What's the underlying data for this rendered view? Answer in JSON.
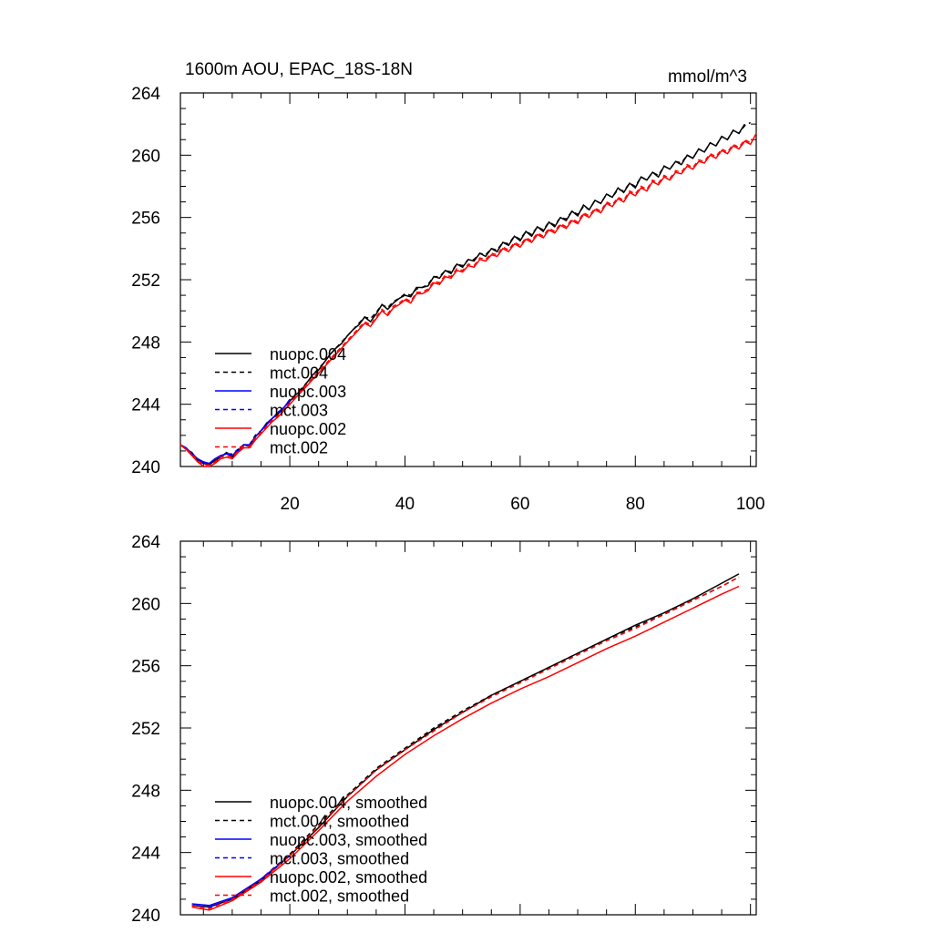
{
  "figure": {
    "title": "1600m AOU, EPAC_18S-18N",
    "units": "mmol/m^3"
  },
  "chart_data": [
    {
      "type": "line",
      "panel": "top",
      "title": "1600m AOU, EPAC_18S-18N",
      "units_label": "mmol/m^3",
      "xlim": [
        1,
        101
      ],
      "ylim": [
        240,
        264
      ],
      "xticks": [
        20,
        40,
        60,
        80,
        100
      ],
      "yticks": [
        240,
        244,
        248,
        252,
        256,
        260,
        264
      ],
      "legend_position": "lower-left",
      "series": [
        {
          "name": "nuopc.004",
          "color": "#000000",
          "dash": "solid",
          "end": 99,
          "values": [
            241.4,
            241.1,
            240.9,
            240.4,
            240.2,
            240.1,
            240.4,
            240.6,
            240.9,
            240.6,
            241.0,
            241.4,
            241.3,
            241.9,
            242.3,
            242.7,
            243.1,
            243.4,
            243.8,
            244.2,
            244.6,
            244.9,
            245.4,
            245.9,
            246.2,
            246.7,
            247.2,
            247.6,
            247.9,
            248.4,
            248.8,
            249.1,
            249.6,
            249.3,
            249.8,
            250.4,
            250.1,
            250.5,
            250.8,
            251.0,
            250.9,
            251.5,
            251.5,
            251.6,
            252.2,
            252.1,
            252.6,
            252.4,
            253.0,
            252.8,
            253.3,
            253.2,
            253.7,
            253.5,
            254.0,
            253.8,
            254.4,
            254.2,
            254.8,
            254.5,
            255.1,
            254.8,
            255.4,
            255.1,
            255.7,
            255.4,
            256.0,
            255.8,
            256.4,
            256.1,
            256.8,
            256.5,
            257.1,
            256.9,
            257.5,
            257.3,
            257.9,
            257.6,
            258.2,
            257.9,
            258.6,
            258.4,
            258.9,
            258.6,
            259.3,
            259.1,
            259.6,
            259.4,
            260.0,
            259.8,
            260.4,
            260.2,
            260.8,
            260.6,
            261.2,
            261.0,
            261.6,
            261.4,
            262.0
          ]
        },
        {
          "name": "mct.004",
          "color": "#000000",
          "dash": "dashed",
          "end": 100,
          "values": [
            241.4,
            241.2,
            240.8,
            240.5,
            240.2,
            240.2,
            240.3,
            240.7,
            240.8,
            240.8,
            241.1,
            241.4,
            241.4,
            242.0,
            242.3,
            242.8,
            243.1,
            243.5,
            243.8,
            244.3,
            244.6,
            245.0,
            245.4,
            245.9,
            246.3,
            246.7,
            247.2,
            247.6,
            248.0,
            248.4,
            248.8,
            249.2,
            249.6,
            249.5,
            249.9,
            250.4,
            250.2,
            250.6,
            250.8,
            251.1,
            251.0,
            251.4,
            251.5,
            251.7,
            252.2,
            252.2,
            252.6,
            252.5,
            253.0,
            252.9,
            253.3,
            253.3,
            253.7,
            253.6,
            254.0,
            253.9,
            254.4,
            254.3,
            254.8,
            254.6,
            255.1,
            254.9,
            255.4,
            255.2,
            255.7,
            255.5,
            256.0,
            255.9,
            256.4,
            256.2,
            256.7,
            256.5,
            257.1,
            256.9,
            257.5,
            257.3,
            257.8,
            257.7,
            258.2,
            258.0,
            258.6,
            258.4,
            258.9,
            258.7,
            259.3,
            259.1,
            259.6,
            259.5,
            260.0,
            259.8,
            260.4,
            260.2,
            260.8,
            260.6,
            261.2,
            261.0,
            261.6,
            261.4,
            261.9,
            262.1
          ]
        },
        {
          "name": "nuopc.003",
          "color": "#0000ff",
          "dash": "solid",
          "end": 20,
          "values": [
            241.4,
            241.2,
            240.8,
            240.5,
            240.3,
            240.2,
            240.5,
            240.7,
            240.8,
            240.7,
            241.0,
            241.4,
            241.4,
            241.9,
            242.3,
            242.7,
            243.1,
            243.5,
            243.8,
            244.3
          ]
        },
        {
          "name": "mct.003",
          "color": "#0000ff",
          "dash": "dashed",
          "end": 20,
          "values": [
            241.4,
            241.1,
            240.9,
            240.4,
            240.2,
            240.2,
            240.3,
            240.6,
            240.9,
            240.7,
            241.1,
            241.4,
            241.3,
            241.9,
            242.3,
            242.8,
            243.1,
            243.4,
            243.8,
            244.2
          ]
        },
        {
          "name": "nuopc.002",
          "color": "#ff0000",
          "dash": "solid",
          "end": 101,
          "values": [
            241.4,
            241.1,
            240.7,
            240.3,
            240.0,
            240.0,
            240.2,
            240.5,
            240.6,
            240.5,
            240.9,
            241.2,
            241.2,
            241.7,
            242.1,
            242.5,
            242.9,
            243.2,
            243.6,
            244.0,
            244.4,
            244.8,
            245.2,
            245.6,
            246.0,
            246.4,
            246.8,
            247.2,
            247.6,
            248.0,
            248.4,
            248.8,
            249.2,
            249.0,
            249.5,
            250.0,
            249.7,
            250.2,
            250.4,
            250.7,
            250.5,
            251.1,
            251.1,
            251.3,
            251.8,
            251.7,
            252.2,
            252.1,
            252.6,
            252.5,
            252.9,
            252.8,
            253.3,
            253.2,
            253.6,
            253.5,
            254.0,
            253.8,
            254.3,
            254.1,
            254.6,
            254.4,
            254.9,
            254.7,
            255.2,
            255.0,
            255.5,
            255.3,
            255.8,
            255.6,
            256.2,
            256.0,
            256.5,
            256.3,
            256.9,
            256.7,
            257.2,
            257.0,
            257.6,
            257.4,
            257.9,
            257.7,
            258.3,
            258.1,
            258.6,
            258.4,
            258.9,
            258.8,
            259.3,
            259.1,
            259.6,
            259.5,
            260.0,
            259.8,
            260.3,
            260.1,
            260.6,
            260.4,
            260.9,
            260.7,
            261.4
          ]
        },
        {
          "name": "mct.002",
          "color": "#ff0000",
          "dash": "dashed",
          "end": 100,
          "values": [
            241.4,
            241.1,
            240.8,
            240.4,
            240.1,
            240.1,
            240.3,
            240.6,
            240.7,
            240.6,
            241.0,
            241.3,
            241.3,
            241.8,
            242.2,
            242.6,
            243.0,
            243.3,
            243.7,
            244.1,
            244.5,
            244.9,
            245.3,
            245.7,
            246.1,
            246.5,
            246.9,
            247.3,
            247.7,
            248.1,
            248.5,
            248.9,
            249.3,
            249.1,
            249.6,
            250.1,
            249.8,
            250.3,
            250.5,
            250.8,
            250.6,
            251.2,
            251.2,
            251.4,
            251.9,
            251.8,
            252.3,
            252.2,
            252.7,
            252.6,
            253.0,
            252.9,
            253.4,
            253.3,
            253.7,
            253.6,
            254.1,
            253.9,
            254.4,
            254.2,
            254.7,
            254.5,
            255.0,
            254.8,
            255.3,
            255.1,
            255.6,
            255.4,
            255.9,
            255.7,
            256.3,
            256.1,
            256.6,
            256.4,
            257.0,
            256.8,
            257.3,
            257.1,
            257.7,
            257.5,
            258.0,
            257.8,
            258.4,
            258.2,
            258.7,
            258.5,
            259.0,
            258.9,
            259.4,
            259.2,
            259.7,
            259.6,
            260.1,
            259.9,
            260.4,
            260.2,
            260.7,
            260.5,
            261.0,
            260.8
          ]
        }
      ]
    },
    {
      "type": "line",
      "panel": "bottom",
      "title": "",
      "xlim": [
        1,
        101
      ],
      "ylim": [
        240,
        264
      ],
      "xticks": [
        20,
        40,
        60,
        80,
        100
      ],
      "yticks": [
        240,
        244,
        248,
        252,
        256,
        260,
        264
      ],
      "legend_position": "lower-left",
      "series": [
        {
          "name": "nuopc.004, smoothed",
          "color": "#000000",
          "dash": "solid",
          "x0": 3,
          "x1": 98,
          "y_at": [
            [
              3,
              240.6
            ],
            [
              6,
              240.5
            ],
            [
              10,
              241.0
            ],
            [
              15,
              242.2
            ],
            [
              20,
              243.8
            ],
            [
              25,
              245.6
            ],
            [
              30,
              247.6
            ],
            [
              35,
              249.3
            ],
            [
              40,
              250.6
            ],
            [
              45,
              251.9
            ],
            [
              50,
              253.0
            ],
            [
              55,
              254.1
            ],
            [
              60,
              255.0
            ],
            [
              65,
              255.9
            ],
            [
              70,
              256.8
            ],
            [
              75,
              257.7
            ],
            [
              80,
              258.6
            ],
            [
              85,
              259.4
            ],
            [
              90,
              260.3
            ],
            [
              95,
              261.3
            ],
            [
              98,
              261.9
            ]
          ]
        },
        {
          "name": "mct.004, smoothed",
          "color": "#000000",
          "dash": "dashed",
          "x0": 3,
          "x1": 98,
          "y_at": [
            [
              3,
              240.6
            ],
            [
              6,
              240.5
            ],
            [
              10,
              241.0
            ],
            [
              15,
              242.3
            ],
            [
              20,
              243.9
            ],
            [
              25,
              245.8
            ],
            [
              30,
              247.7
            ],
            [
              35,
              249.4
            ],
            [
              40,
              250.7
            ],
            [
              45,
              252.0
            ],
            [
              50,
              253.1
            ],
            [
              55,
              254.1
            ],
            [
              60,
              255.0
            ],
            [
              65,
              255.9
            ],
            [
              70,
              256.8
            ],
            [
              75,
              257.7
            ],
            [
              80,
              258.5
            ],
            [
              85,
              259.3
            ],
            [
              90,
              260.2
            ],
            [
              95,
              261.1
            ],
            [
              98,
              261.7
            ]
          ]
        },
        {
          "name": "nuopc.003, smoothed",
          "color": "#0000ff",
          "dash": "solid",
          "x0": 3,
          "x1": 20,
          "y_at": [
            [
              3,
              240.7
            ],
            [
              6,
              240.6
            ],
            [
              10,
              241.1
            ],
            [
              15,
              242.3
            ],
            [
              20,
              243.8
            ]
          ]
        },
        {
          "name": "mct.003, smoothed",
          "color": "#0000ff",
          "dash": "dashed",
          "x0": 3,
          "x1": 20,
          "y_at": [
            [
              3,
              240.6
            ],
            [
              6,
              240.5
            ],
            [
              10,
              241.0
            ],
            [
              15,
              242.2
            ],
            [
              20,
              243.8
            ]
          ]
        },
        {
          "name": "nuopc.002, smoothed",
          "color": "#ff0000",
          "dash": "solid",
          "x0": 3,
          "x1": 98,
          "y_at": [
            [
              3,
              240.5
            ],
            [
              6,
              240.3
            ],
            [
              10,
              240.9
            ],
            [
              15,
              242.1
            ],
            [
              20,
              243.6
            ],
            [
              25,
              245.4
            ],
            [
              30,
              247.3
            ],
            [
              35,
              248.9
            ],
            [
              40,
              250.3
            ],
            [
              45,
              251.5
            ],
            [
              50,
              252.6
            ],
            [
              55,
              253.6
            ],
            [
              60,
              254.5
            ],
            [
              65,
              255.3
            ],
            [
              70,
              256.2
            ],
            [
              75,
              257.1
            ],
            [
              80,
              257.9
            ],
            [
              85,
              258.8
            ],
            [
              90,
              259.7
            ],
            [
              95,
              260.6
            ],
            [
              98,
              261.1
            ]
          ]
        },
        {
          "name": "mct.002, smoothed",
          "color": "#ff0000",
          "dash": "dashed",
          "x0": 3,
          "x1": 98,
          "y_at": [
            [
              3,
              240.6
            ],
            [
              6,
              240.4
            ],
            [
              10,
              241.0
            ],
            [
              15,
              242.2
            ],
            [
              20,
              243.8
            ],
            [
              25,
              245.7
            ],
            [
              30,
              247.6
            ],
            [
              35,
              249.3
            ],
            [
              40,
              250.6
            ],
            [
              45,
              251.8
            ],
            [
              50,
              253.0
            ],
            [
              55,
              254.0
            ],
            [
              60,
              254.9
            ],
            [
              65,
              255.8
            ],
            [
              70,
              256.7
            ],
            [
              75,
              257.6
            ],
            [
              80,
              258.4
            ],
            [
              85,
              259.3
            ],
            [
              90,
              260.2
            ],
            [
              95,
              261.1
            ],
            [
              98,
              261.7
            ]
          ]
        }
      ]
    }
  ]
}
